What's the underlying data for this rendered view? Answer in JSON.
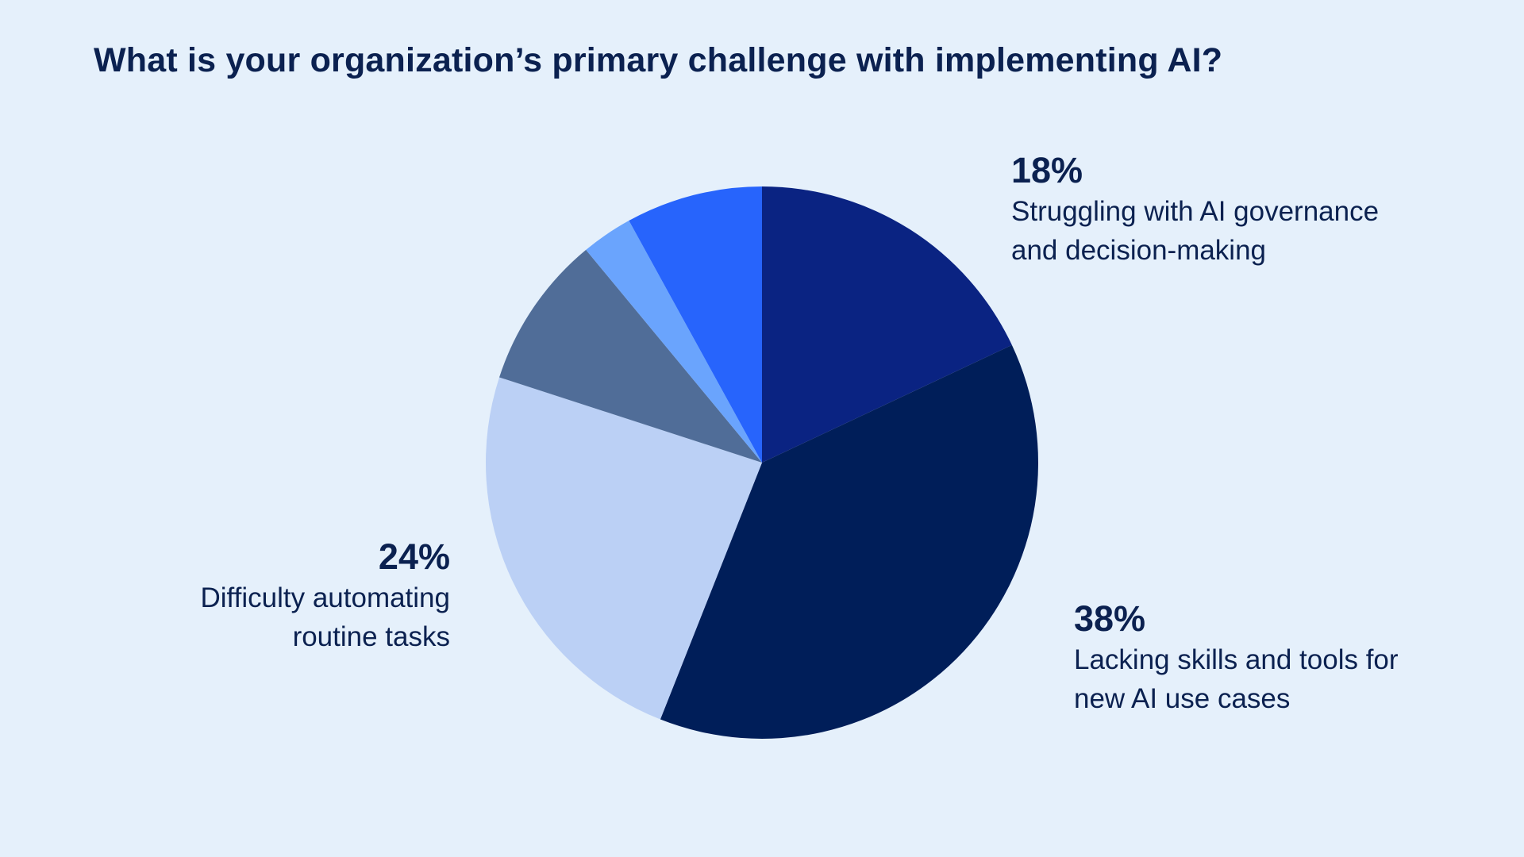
{
  "chart_data": {
    "type": "pie",
    "title": "What is your organization’s primary challenge with implementing AI?",
    "start_angle_deg": 0,
    "direction": "clockwise",
    "slices": [
      {
        "label": "Struggling with AI governance and decision-making",
        "value": 18,
        "value_label": "18%",
        "color": "#0a2382"
      },
      {
        "label": "Lacking skills and tools for new AI use cases",
        "value": 38,
        "value_label": "38%",
        "color": "#001e59"
      },
      {
        "label": "Difficulty automating routine tasks",
        "value": 24,
        "value_label": "24%",
        "color": "#bbd0f5"
      },
      {
        "label": "",
        "value": 9,
        "value_label": "",
        "color": "#506d98"
      },
      {
        "label": "",
        "value": 3,
        "value_label": "",
        "color": "#6aa4fd"
      },
      {
        "label": "",
        "value": 8,
        "value_label": "",
        "color": "#2764fc"
      }
    ]
  },
  "callouts": {
    "governance": {
      "pct": "18%",
      "line1": "Struggling with AI governance",
      "line2": "and decision-making"
    },
    "skills": {
      "pct": "38%",
      "line1": "Lacking skills and tools for",
      "line2": "new AI use cases"
    },
    "automation": {
      "pct": "24%",
      "line1": "Difficulty automating",
      "line2": "routine tasks"
    }
  },
  "colors": {
    "background": "#e5f0fb",
    "text": "#0b2150"
  }
}
